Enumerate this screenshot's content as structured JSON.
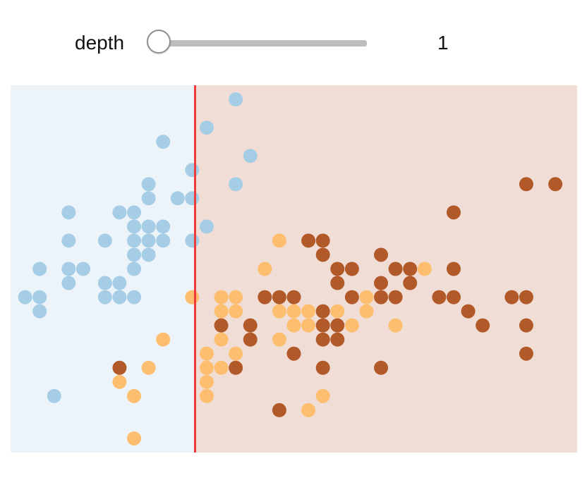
{
  "control": {
    "label": "depth",
    "value": "1",
    "slider_min": 1,
    "slider_max": 10,
    "slider_value": 1
  },
  "chart_data": {
    "type": "scatter",
    "title": "",
    "xlabel": "",
    "ylabel": "",
    "xlim": [
      0,
      39
    ],
    "ylim": [
      0,
      26
    ],
    "split_x": 12.7,
    "regions": [
      {
        "side": "left",
        "color": "#edf4f9"
      },
      {
        "side": "right",
        "color": "#f0ded6"
      }
    ],
    "split_line_color": "#ee3a3a",
    "series": [
      {
        "color": "#a6cde6",
        "points": [
          [
            15.5,
            25
          ],
          [
            13.5,
            23
          ],
          [
            10.5,
            22
          ],
          [
            16.5,
            21
          ],
          [
            12.5,
            20
          ],
          [
            9.5,
            19
          ],
          [
            15.5,
            19
          ],
          [
            9.5,
            18
          ],
          [
            11.5,
            18
          ],
          [
            12.5,
            18
          ],
          [
            4,
            17
          ],
          [
            7.5,
            17
          ],
          [
            8.5,
            17
          ],
          [
            8.5,
            16
          ],
          [
            9.5,
            16
          ],
          [
            10.5,
            16
          ],
          [
            13.5,
            16
          ],
          [
            4,
            15
          ],
          [
            6.5,
            15
          ],
          [
            8.5,
            15
          ],
          [
            9.5,
            15
          ],
          [
            10.5,
            15
          ],
          [
            12.5,
            15
          ],
          [
            8.5,
            14
          ],
          [
            9.5,
            14
          ],
          [
            2,
            13
          ],
          [
            4,
            13
          ],
          [
            5,
            13
          ],
          [
            8.5,
            13
          ],
          [
            4,
            12
          ],
          [
            6.5,
            12
          ],
          [
            7.5,
            12
          ],
          [
            1,
            11
          ],
          [
            2,
            11
          ],
          [
            6.5,
            11
          ],
          [
            7.5,
            11
          ],
          [
            8.5,
            11
          ],
          [
            2,
            10
          ],
          [
            3,
            4
          ]
        ]
      },
      {
        "color": "#fdbf6f",
        "points": [
          [
            18.5,
            15
          ],
          [
            17.5,
            13
          ],
          [
            28.5,
            13
          ],
          [
            12.5,
            11
          ],
          [
            14.5,
            11
          ],
          [
            15.5,
            11
          ],
          [
            24.5,
            11
          ],
          [
            14.5,
            10
          ],
          [
            15.5,
            10
          ],
          [
            18.5,
            10
          ],
          [
            19.5,
            10
          ],
          [
            20.5,
            10
          ],
          [
            22.5,
            10
          ],
          [
            24.5,
            10
          ],
          [
            14.5,
            9
          ],
          [
            19.5,
            9
          ],
          [
            20.5,
            9
          ],
          [
            23.5,
            9
          ],
          [
            26.5,
            9
          ],
          [
            10.5,
            8
          ],
          [
            14.5,
            8
          ],
          [
            18.5,
            8
          ],
          [
            13.5,
            7
          ],
          [
            15.5,
            7
          ],
          [
            9.5,
            6
          ],
          [
            13.5,
            6
          ],
          [
            14.5,
            6
          ],
          [
            7.5,
            5
          ],
          [
            13.5,
            5
          ],
          [
            8.5,
            4
          ],
          [
            13.5,
            4
          ],
          [
            21.5,
            4
          ],
          [
            20.5,
            3
          ],
          [
            8.5,
            1
          ]
        ]
      },
      {
        "color": "#b15928",
        "points": [
          [
            35.5,
            19
          ],
          [
            37.5,
            19
          ],
          [
            30.5,
            17
          ],
          [
            20.5,
            15
          ],
          [
            21.5,
            15
          ],
          [
            21.5,
            14
          ],
          [
            25.5,
            14
          ],
          [
            22.5,
            13
          ],
          [
            23.5,
            13
          ],
          [
            26.5,
            13
          ],
          [
            27.5,
            13
          ],
          [
            30.5,
            13
          ],
          [
            22.5,
            12
          ],
          [
            25.5,
            12
          ],
          [
            27.5,
            12
          ],
          [
            17.5,
            11
          ],
          [
            18.5,
            11
          ],
          [
            19.5,
            11
          ],
          [
            23.5,
            11
          ],
          [
            25.5,
            11
          ],
          [
            26.5,
            11
          ],
          [
            29.5,
            11
          ],
          [
            30.5,
            11
          ],
          [
            34.5,
            11
          ],
          [
            35.5,
            11
          ],
          [
            21.5,
            10
          ],
          [
            31.5,
            10
          ],
          [
            14.5,
            9
          ],
          [
            16.5,
            9
          ],
          [
            21.5,
            9
          ],
          [
            22.5,
            9
          ],
          [
            32.5,
            9
          ],
          [
            35.5,
            9
          ],
          [
            16.5,
            8
          ],
          [
            21.5,
            8
          ],
          [
            22.5,
            8
          ],
          [
            19.5,
            7
          ],
          [
            35.5,
            7
          ],
          [
            7.5,
            6
          ],
          [
            15.5,
            6
          ],
          [
            21.5,
            6
          ],
          [
            25.5,
            6
          ],
          [
            18.5,
            3
          ]
        ]
      }
    ]
  }
}
